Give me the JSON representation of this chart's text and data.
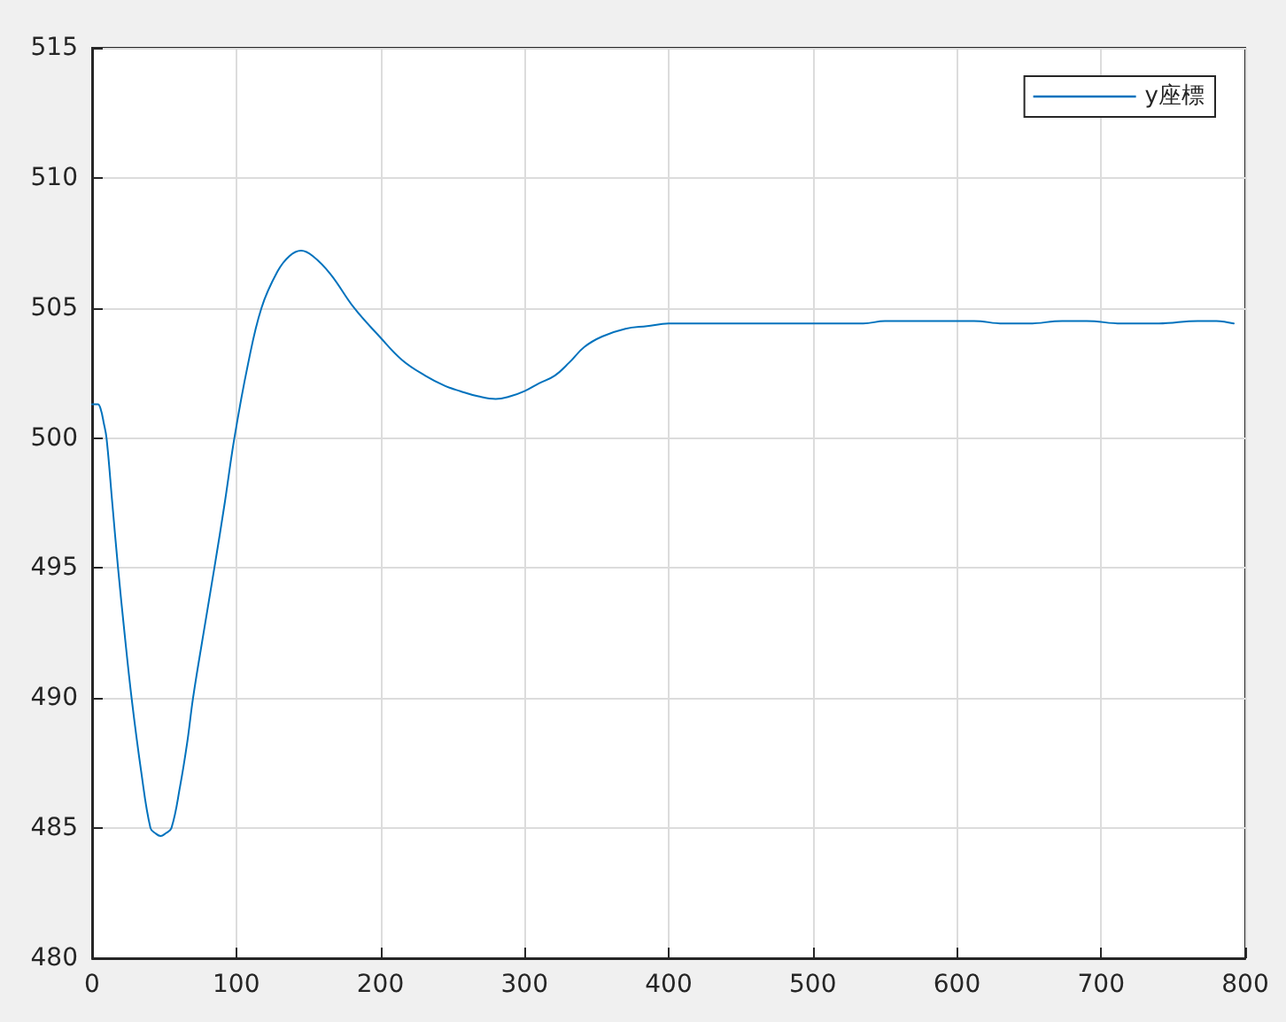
{
  "chart_data": {
    "type": "line",
    "x": [
      0,
      4,
      6,
      8,
      10,
      14,
      18,
      22.5,
      27.4,
      34,
      40.5,
      44,
      47.5,
      51,
      55,
      61,
      66,
      70,
      77,
      84.8,
      92,
      98.7,
      108,
      117.5,
      128.6,
      137,
      145,
      153,
      165.4,
      181.8,
      199.4,
      215,
      231,
      245,
      255.5,
      268,
      280,
      290,
      300,
      310,
      321,
      331,
      341.5,
      353.8,
      370,
      385,
      400,
      417,
      430,
      450,
      470,
      489,
      505,
      521.7,
      535,
      550,
      570,
      590,
      611.8,
      632,
      650,
      673,
      690,
      714,
      740,
      767,
      780,
      792
    ],
    "series": [
      {
        "name": "y座標",
        "color": "#0072bd",
        "values": [
          501.3,
          501.3,
          501.1,
          500.6,
          500.0,
          497.5,
          495.0,
          492.5,
          490.0,
          487.2,
          485.0,
          484.8,
          484.7,
          484.8,
          485.0,
          486.6,
          488.3,
          490.0,
          492.4,
          495.0,
          497.5,
          500.0,
          502.8,
          505.0,
          506.4,
          507.0,
          507.2,
          507.0,
          506.3,
          505.0,
          503.9,
          503.0,
          502.4,
          502.0,
          501.8,
          501.6,
          501.5,
          501.6,
          501.8,
          502.1,
          502.4,
          502.9,
          503.5,
          503.9,
          504.2,
          504.3,
          504.4,
          504.4,
          504.4,
          504.4,
          504.4,
          504.4,
          504.4,
          504.4,
          504.4,
          504.5,
          504.5,
          504.5,
          504.5,
          504.4,
          504.4,
          504.5,
          504.5,
          504.4,
          504.4,
          504.5,
          504.5,
          504.4
        ]
      }
    ],
    "xlim": [
      0,
      800
    ],
    "xticks": [
      0,
      100,
      200,
      300,
      400,
      500,
      600,
      700,
      800
    ],
    "ylim": [
      480,
      515
    ],
    "yticks": [
      480,
      485,
      490,
      495,
      500,
      505,
      510,
      515
    ],
    "grid": true,
    "legend": "top right",
    "marker": "none",
    "line_style": "solid"
  }
}
